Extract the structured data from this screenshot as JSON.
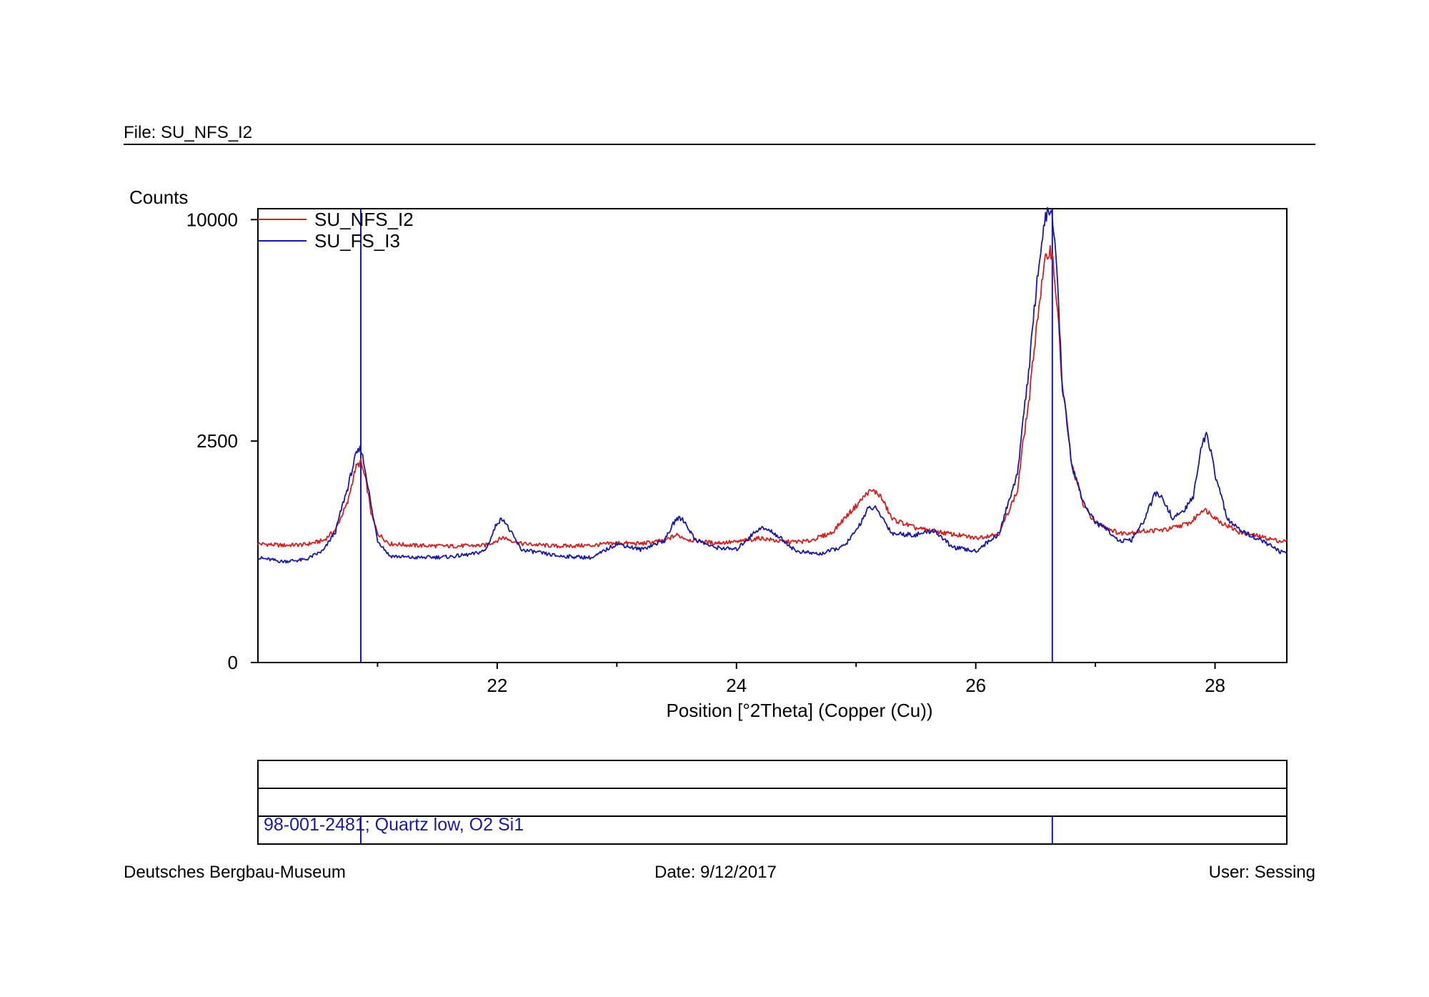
{
  "header": {
    "file": "File: SU_NFS_I2"
  },
  "footer": {
    "organization": "Deutsches Bergbau-Museum",
    "date": "Date: 9/12/2017",
    "user": "User: Sessing"
  },
  "reference": {
    "label": "98-001-2481; Quartz low, O2 Si1",
    "peaks_2theta": [
      20.86,
      26.64
    ],
    "color": "#1a1aa0"
  },
  "chart_data": {
    "type": "line",
    "title": "",
    "xlabel": "Position [°2Theta] (Copper (Cu))",
    "ylabel": "Counts",
    "xlim": [
      20.0,
      28.6
    ],
    "ylim": [
      0,
      10500
    ],
    "y_scale": "sqrt",
    "x_ticks": [
      22,
      24,
      26,
      28
    ],
    "x_minor_ticks": [
      21,
      23,
      25,
      27
    ],
    "y_ticks": [
      0,
      2500,
      10000
    ],
    "grid": false,
    "legend": "top-left",
    "series": [
      {
        "name": "SU_NFS_I2",
        "color": "#d42020",
        "x": [
          20.0,
          20.2,
          20.4,
          20.55,
          20.65,
          20.75,
          20.82,
          20.86,
          20.9,
          20.95,
          21.0,
          21.1,
          21.3,
          21.6,
          21.9,
          22.0,
          22.05,
          22.1,
          22.2,
          22.5,
          22.8,
          23.0,
          23.2,
          23.4,
          23.5,
          23.6,
          23.8,
          24.0,
          24.2,
          24.4,
          24.6,
          24.8,
          25.0,
          25.1,
          25.15,
          25.2,
          25.3,
          25.5,
          25.8,
          26.0,
          26.2,
          26.35,
          26.45,
          26.52,
          26.58,
          26.62,
          26.64,
          26.68,
          26.72,
          26.8,
          26.9,
          27.0,
          27.2,
          27.4,
          27.6,
          27.8,
          27.9,
          27.95,
          28.05,
          28.2,
          28.4,
          28.55
        ],
        "y": [
          720,
          700,
          710,
          760,
          900,
          1300,
          1950,
          2050,
          1700,
          1100,
          850,
          720,
          700,
          690,
          700,
          760,
          800,
          770,
          720,
          690,
          700,
          730,
          720,
          760,
          830,
          770,
          730,
          740,
          790,
          740,
          750,
          860,
          1250,
          1480,
          1500,
          1420,
          1050,
          920,
          840,
          790,
          850,
          1500,
          3600,
          6200,
          8200,
          8700,
          8500,
          6500,
          4000,
          2000,
          1250,
          1000,
          850,
          880,
          900,
          1000,
          1200,
          1150,
          1000,
          870,
          800,
          750
        ]
      },
      {
        "name": "SU_FS_I3",
        "color": "#1a1aa0",
        "x": [
          20.0,
          20.2,
          20.4,
          20.55,
          20.65,
          20.75,
          20.82,
          20.86,
          20.9,
          20.95,
          21.0,
          21.1,
          21.3,
          21.6,
          21.8,
          21.9,
          21.95,
          22.0,
          22.05,
          22.1,
          22.2,
          22.5,
          22.8,
          23.0,
          23.2,
          23.4,
          23.5,
          23.55,
          23.65,
          23.8,
          24.0,
          24.2,
          24.3,
          24.5,
          24.7,
          24.9,
          25.0,
          25.1,
          25.15,
          25.2,
          25.3,
          25.5,
          25.65,
          25.8,
          26.0,
          26.2,
          26.35,
          26.45,
          26.52,
          26.58,
          26.62,
          26.65,
          26.68,
          26.72,
          26.8,
          26.9,
          27.0,
          27.1,
          27.2,
          27.3,
          27.4,
          27.5,
          27.55,
          27.65,
          27.75,
          27.82,
          27.88,
          27.93,
          28.0,
          28.1,
          28.2,
          28.4,
          28.55
        ],
        "y": [
          560,
          520,
          540,
          640,
          880,
          1550,
          2200,
          2350,
          1850,
          1200,
          760,
          580,
          560,
          570,
          600,
          640,
          800,
          1000,
          1060,
          900,
          650,
          580,
          560,
          720,
          650,
          760,
          1060,
          1050,
          780,
          680,
          650,
          930,
          870,
          630,
          600,
          690,
          880,
          1200,
          1230,
          1120,
          850,
          830,
          890,
          680,
          630,
          850,
          1800,
          4500,
          7800,
          10000,
          10500,
          9800,
          7500,
          4000,
          2000,
          1300,
          1000,
          900,
          750,
          760,
          1000,
          1450,
          1400,
          1050,
          1200,
          1400,
          2300,
          2700,
          1800,
          1050,
          900,
          750,
          620
        ]
      }
    ]
  }
}
